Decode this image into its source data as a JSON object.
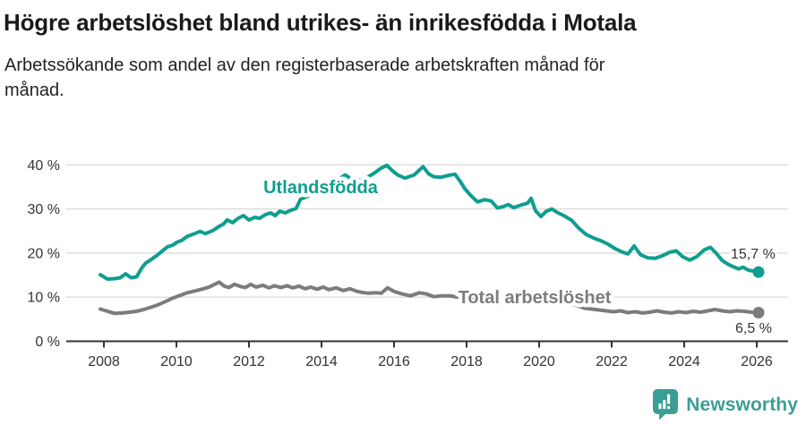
{
  "header": {
    "title": "Högre arbetslöshet bland utrikes- än inrikesfödda i Motala",
    "subtitle_lines": [
      "Arbetssökande som andel av den registerbaserade arbetskraften månad för",
      "månad."
    ]
  },
  "footer": {
    "brand": "Newsworthy",
    "logo_icon": "newsworthy-speech-bubble-bar-chart"
  },
  "colors": {
    "teal": "#0f9e90",
    "gray": "#7c7c7c",
    "grid": "#dcdcdc",
    "axis": "#333333",
    "tick_label": "#333333",
    "value_label": "#333333",
    "logo": "#3a9e94"
  },
  "chart_data": {
    "type": "line",
    "title": "Högre arbetslöshet bland utrikes- än inrikesfödda i Motala",
    "xlabel": "",
    "ylabel": "Arbetssökande som andel av den registerbaserade arbetskraften",
    "unit": "%",
    "grid": "horizontal",
    "legend_position": "inline-labels",
    "xlim": [
      2007.05,
      2026.9
    ],
    "ylim": [
      0,
      43.5
    ],
    "x_axis": {
      "ticks": [
        2008,
        2010,
        2012,
        2014,
        2016,
        2018,
        2020,
        2022,
        2024,
        2026
      ]
    },
    "y_axis": {
      "ticks": [
        {
          "value": 0,
          "label": "0 %"
        },
        {
          "value": 10,
          "label": "10 %"
        },
        {
          "value": 20,
          "label": "20 %"
        },
        {
          "value": 30,
          "label": "30 %"
        },
        {
          "value": 40,
          "label": "40 %"
        }
      ]
    },
    "series": [
      {
        "name": "Utlandsfödda",
        "color": "#0f9e90",
        "end_label": "15,7 %",
        "end_value": 15.7,
        "points": [
          [
            2007.9,
            15.1
          ],
          [
            2008.1,
            14.1
          ],
          [
            2008.3,
            14.2
          ],
          [
            2008.45,
            14.4
          ],
          [
            2008.6,
            15.3
          ],
          [
            2008.75,
            14.4
          ],
          [
            2008.9,
            14.6
          ],
          [
            2009.05,
            16.7
          ],
          [
            2009.15,
            17.7
          ],
          [
            2009.3,
            18.5
          ],
          [
            2009.45,
            19.4
          ],
          [
            2009.6,
            20.4
          ],
          [
            2009.75,
            21.4
          ],
          [
            2009.9,
            21.8
          ],
          [
            2010.0,
            22.4
          ],
          [
            2010.15,
            22.9
          ],
          [
            2010.3,
            23.8
          ],
          [
            2010.5,
            24.4
          ],
          [
            2010.65,
            24.9
          ],
          [
            2010.8,
            24.4
          ],
          [
            2011.0,
            25.1
          ],
          [
            2011.15,
            25.9
          ],
          [
            2011.3,
            26.6
          ],
          [
            2011.4,
            27.5
          ],
          [
            2011.55,
            26.9
          ],
          [
            2011.7,
            27.9
          ],
          [
            2011.85,
            28.5
          ],
          [
            2012.0,
            27.5
          ],
          [
            2012.15,
            28.1
          ],
          [
            2012.3,
            27.9
          ],
          [
            2012.45,
            28.7
          ],
          [
            2012.6,
            29.1
          ],
          [
            2012.72,
            28.5
          ],
          [
            2012.85,
            29.5
          ],
          [
            2013.0,
            29.1
          ],
          [
            2013.15,
            29.7
          ],
          [
            2013.3,
            30.1
          ],
          [
            2013.42,
            32.2
          ],
          [
            2013.6,
            32.8
          ],
          [
            2013.8,
            33.7
          ],
          [
            2014.0,
            34.5
          ],
          [
            2014.2,
            35.3
          ],
          [
            2014.4,
            36.3
          ],
          [
            2014.65,
            37.7
          ],
          [
            2014.85,
            36.7
          ],
          [
            2015.05,
            36.6
          ],
          [
            2015.25,
            37.1
          ],
          [
            2015.45,
            38.1
          ],
          [
            2015.65,
            39.3
          ],
          [
            2015.8,
            39.9
          ],
          [
            2015.95,
            38.7
          ],
          [
            2016.1,
            37.7
          ],
          [
            2016.3,
            37.0
          ],
          [
            2016.55,
            37.7
          ],
          [
            2016.8,
            39.6
          ],
          [
            2016.95,
            38.0
          ],
          [
            2017.1,
            37.3
          ],
          [
            2017.3,
            37.2
          ],
          [
            2017.5,
            37.6
          ],
          [
            2017.68,
            37.9
          ],
          [
            2017.82,
            36.3
          ],
          [
            2017.95,
            34.6
          ],
          [
            2018.1,
            33.2
          ],
          [
            2018.3,
            31.6
          ],
          [
            2018.5,
            32.1
          ],
          [
            2018.68,
            31.8
          ],
          [
            2018.85,
            30.2
          ],
          [
            2019.0,
            30.5
          ],
          [
            2019.15,
            31.0
          ],
          [
            2019.3,
            30.3
          ],
          [
            2019.5,
            30.9
          ],
          [
            2019.68,
            31.3
          ],
          [
            2019.78,
            32.4
          ],
          [
            2019.9,
            29.6
          ],
          [
            2020.05,
            28.3
          ],
          [
            2020.2,
            29.5
          ],
          [
            2020.35,
            30.0
          ],
          [
            2020.5,
            29.2
          ],
          [
            2020.7,
            28.4
          ],
          [
            2020.9,
            27.4
          ],
          [
            2021.1,
            25.6
          ],
          [
            2021.3,
            24.2
          ],
          [
            2021.5,
            23.4
          ],
          [
            2021.7,
            22.8
          ],
          [
            2021.9,
            22.0
          ],
          [
            2022.1,
            21.0
          ],
          [
            2022.3,
            20.2
          ],
          [
            2022.45,
            19.8
          ],
          [
            2022.62,
            21.6
          ],
          [
            2022.8,
            19.6
          ],
          [
            2023.0,
            18.9
          ],
          [
            2023.2,
            18.8
          ],
          [
            2023.4,
            19.4
          ],
          [
            2023.6,
            20.2
          ],
          [
            2023.78,
            20.5
          ],
          [
            2023.95,
            19.2
          ],
          [
            2024.15,
            18.4
          ],
          [
            2024.35,
            19.2
          ],
          [
            2024.55,
            20.7
          ],
          [
            2024.72,
            21.3
          ],
          [
            2024.88,
            20.0
          ],
          [
            2025.05,
            18.3
          ],
          [
            2025.2,
            17.5
          ],
          [
            2025.35,
            16.9
          ],
          [
            2025.5,
            16.4
          ],
          [
            2025.62,
            16.8
          ],
          [
            2025.78,
            16.1
          ],
          [
            2026.05,
            15.7
          ]
        ]
      },
      {
        "name": "Total arbetslöshet",
        "color": "#7c7c7c",
        "end_label": "6,5 %",
        "end_value": 6.5,
        "points": [
          [
            2007.9,
            7.3
          ],
          [
            2008.1,
            6.8
          ],
          [
            2008.3,
            6.3
          ],
          [
            2008.5,
            6.4
          ],
          [
            2008.7,
            6.6
          ],
          [
            2008.9,
            6.8
          ],
          [
            2009.1,
            7.2
          ],
          [
            2009.3,
            7.7
          ],
          [
            2009.5,
            8.3
          ],
          [
            2009.7,
            9.0
          ],
          [
            2009.9,
            9.8
          ],
          [
            2010.1,
            10.4
          ],
          [
            2010.3,
            11.0
          ],
          [
            2010.5,
            11.4
          ],
          [
            2010.7,
            11.8
          ],
          [
            2010.9,
            12.3
          ],
          [
            2011.05,
            12.9
          ],
          [
            2011.18,
            13.4
          ],
          [
            2011.32,
            12.5
          ],
          [
            2011.45,
            12.2
          ],
          [
            2011.6,
            12.9
          ],
          [
            2011.78,
            12.4
          ],
          [
            2011.9,
            12.2
          ],
          [
            2012.05,
            12.9
          ],
          [
            2012.2,
            12.3
          ],
          [
            2012.38,
            12.7
          ],
          [
            2012.55,
            12.1
          ],
          [
            2012.7,
            12.6
          ],
          [
            2012.88,
            12.2
          ],
          [
            2013.05,
            12.6
          ],
          [
            2013.2,
            12.1
          ],
          [
            2013.38,
            12.5
          ],
          [
            2013.55,
            11.9
          ],
          [
            2013.7,
            12.3
          ],
          [
            2013.88,
            11.8
          ],
          [
            2014.05,
            12.3
          ],
          [
            2014.2,
            11.7
          ],
          [
            2014.4,
            12.1
          ],
          [
            2014.6,
            11.5
          ],
          [
            2014.78,
            11.9
          ],
          [
            2014.95,
            11.4
          ],
          [
            2015.1,
            11.1
          ],
          [
            2015.3,
            10.9
          ],
          [
            2015.5,
            11.0
          ],
          [
            2015.65,
            10.9
          ],
          [
            2015.82,
            12.1
          ],
          [
            2016.0,
            11.3
          ],
          [
            2016.2,
            10.8
          ],
          [
            2016.45,
            10.3
          ],
          [
            2016.7,
            11.0
          ],
          [
            2016.9,
            10.7
          ],
          [
            2017.1,
            10.1
          ],
          [
            2017.3,
            10.3
          ],
          [
            2017.55,
            10.3
          ],
          [
            2017.8,
            9.9
          ],
          [
            2018.1,
            9.5
          ],
          [
            2018.5,
            9.0
          ],
          [
            2018.9,
            8.7
          ],
          [
            2019.3,
            8.5
          ],
          [
            2019.7,
            8.4
          ],
          [
            2020.1,
            8.8
          ],
          [
            2020.4,
            9.3
          ],
          [
            2020.7,
            9.0
          ],
          [
            2021.0,
            8.2
          ],
          [
            2021.25,
            7.5
          ],
          [
            2021.45,
            7.3
          ],
          [
            2021.65,
            7.1
          ],
          [
            2021.85,
            6.9
          ],
          [
            2022.05,
            6.7
          ],
          [
            2022.25,
            6.9
          ],
          [
            2022.45,
            6.5
          ],
          [
            2022.65,
            6.7
          ],
          [
            2022.85,
            6.4
          ],
          [
            2023.05,
            6.6
          ],
          [
            2023.25,
            6.9
          ],
          [
            2023.45,
            6.6
          ],
          [
            2023.65,
            6.4
          ],
          [
            2023.85,
            6.7
          ],
          [
            2024.05,
            6.5
          ],
          [
            2024.25,
            6.8
          ],
          [
            2024.45,
            6.6
          ],
          [
            2024.65,
            6.9
          ],
          [
            2024.85,
            7.2
          ],
          [
            2025.05,
            6.9
          ],
          [
            2025.25,
            6.7
          ],
          [
            2025.45,
            6.9
          ],
          [
            2025.65,
            6.8
          ],
          [
            2025.85,
            6.6
          ],
          [
            2026.05,
            6.5
          ]
        ]
      }
    ]
  }
}
